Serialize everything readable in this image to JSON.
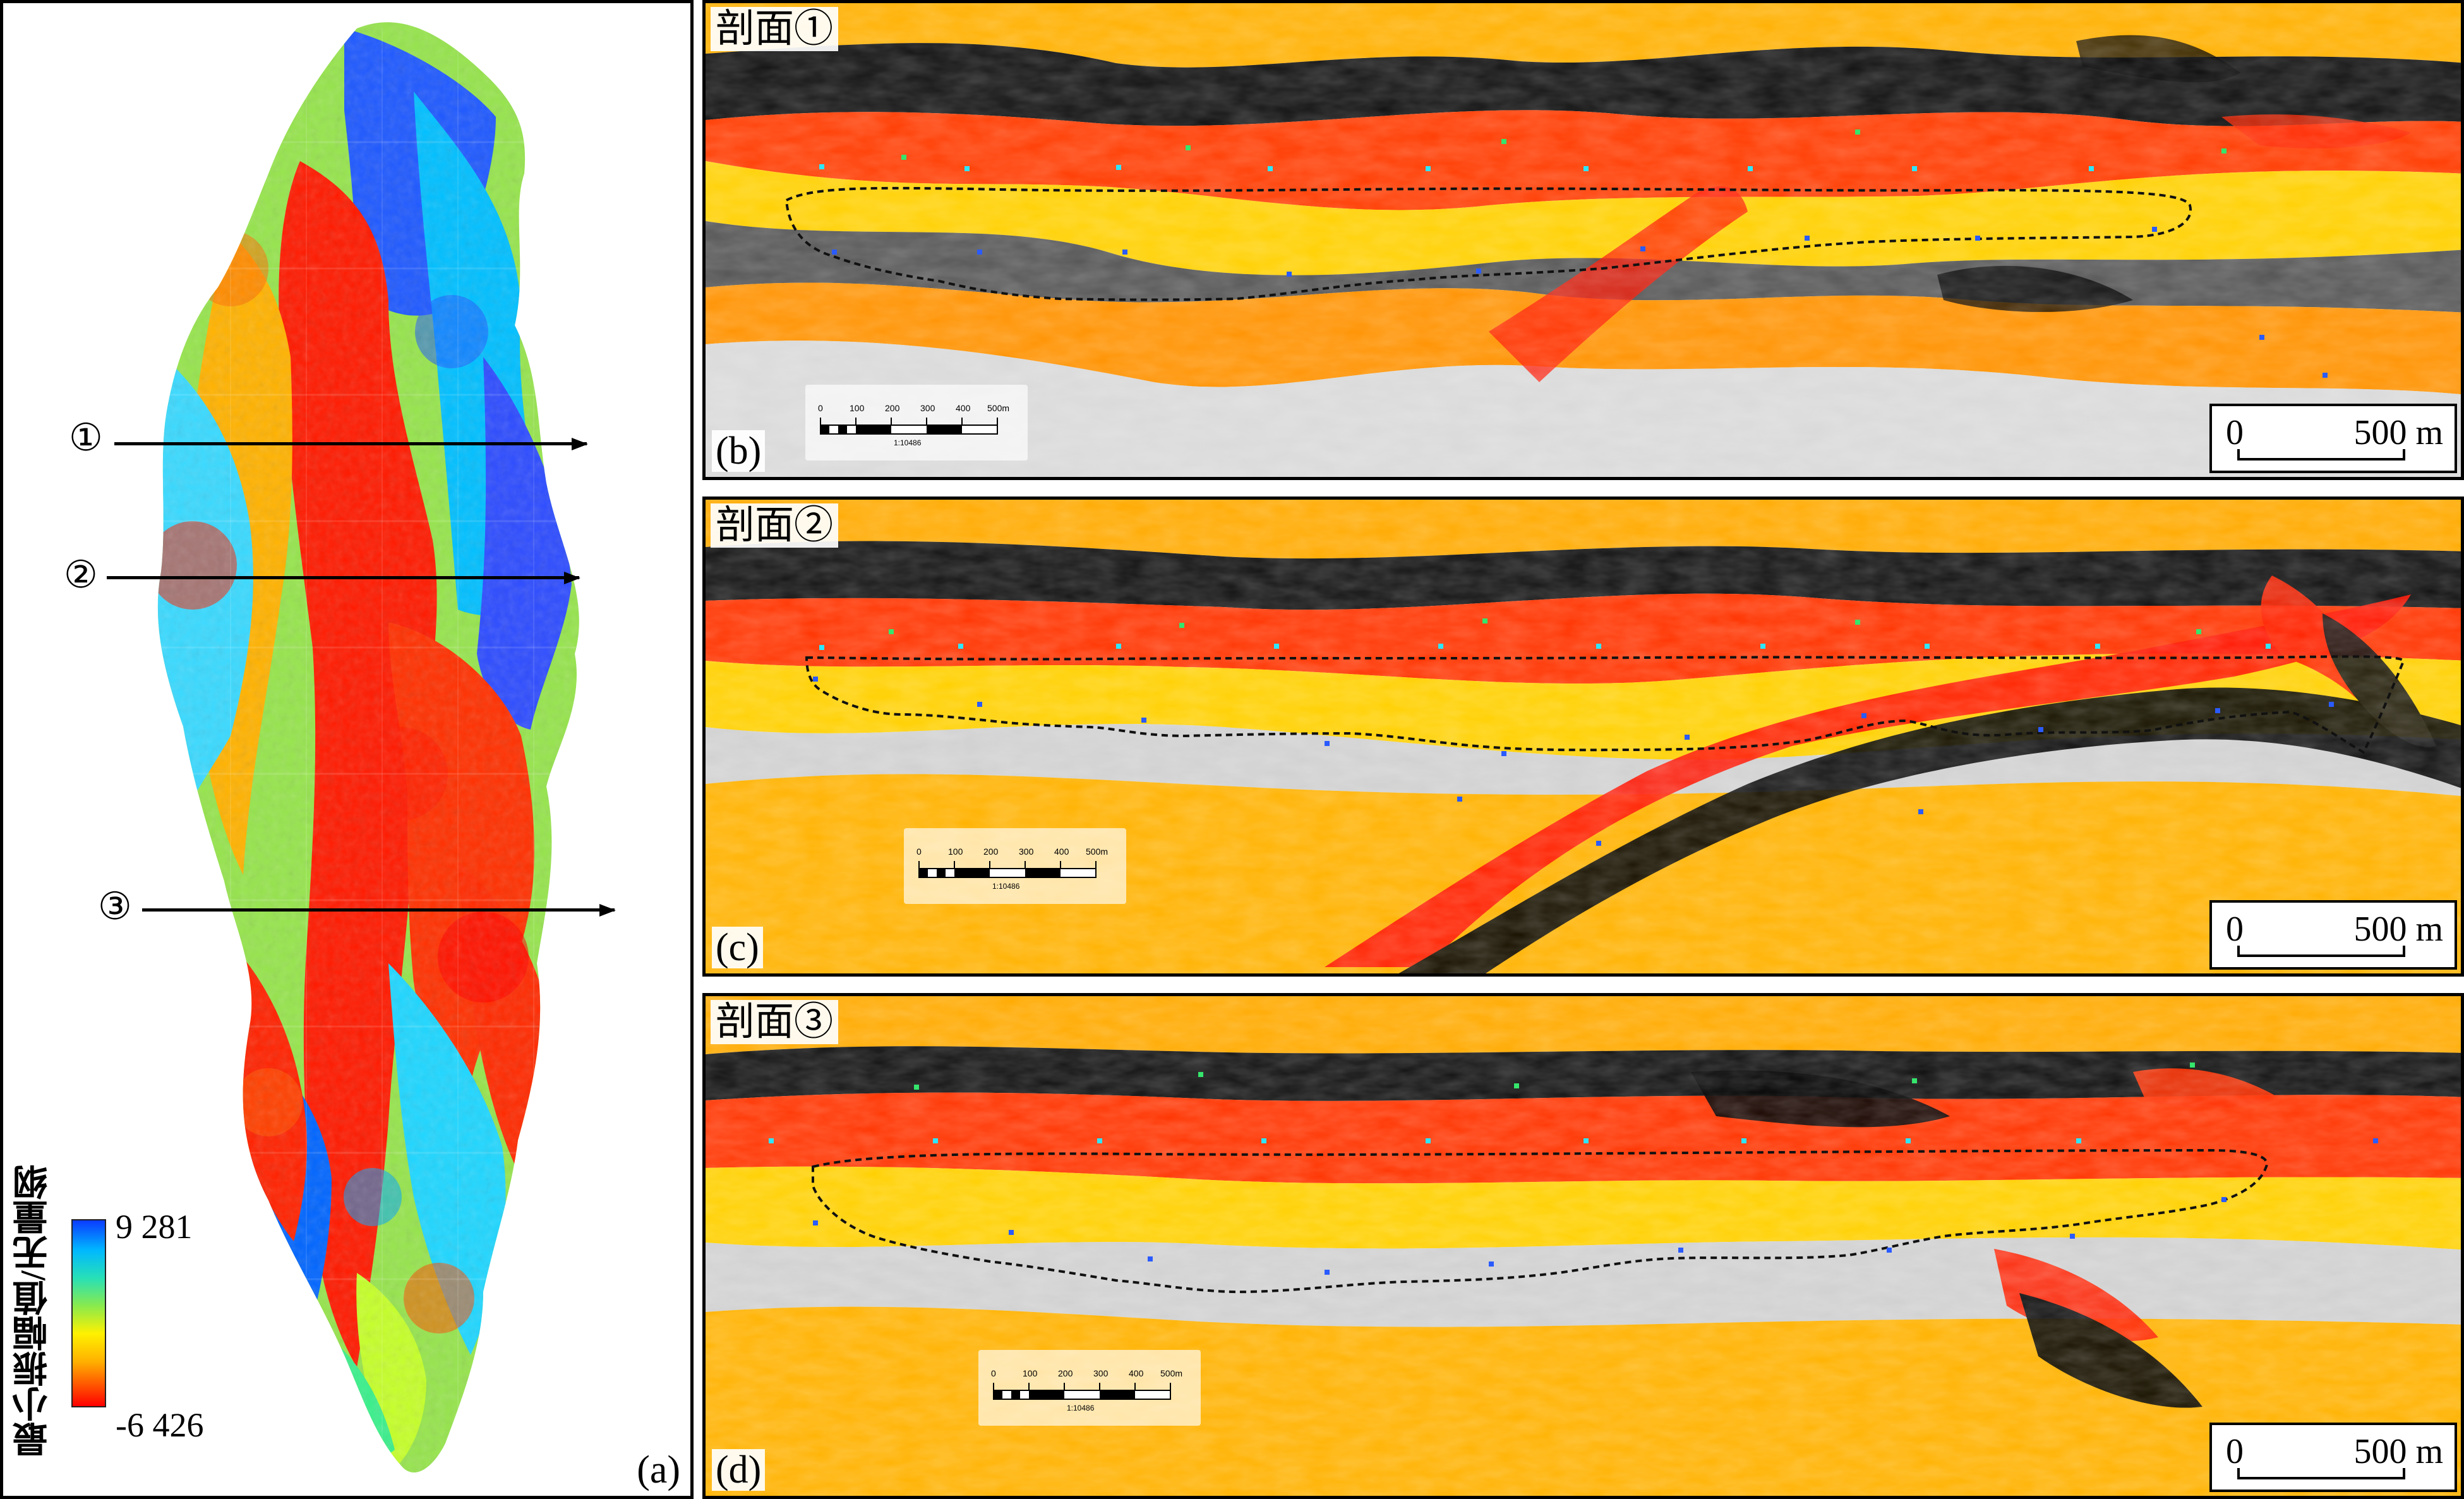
{
  "panels": {
    "a": {
      "label": "(a)",
      "legend": {
        "title": "最小振幅值/无量纲",
        "max": "9 281",
        "min": "-6 426"
      },
      "profiles": [
        {
          "label": "①"
        },
        {
          "label": "②"
        },
        {
          "label": "③"
        }
      ],
      "colors": [
        "#ff0000",
        "#ff6a00",
        "#ffd400",
        "#88ea50",
        "#2ee6c1",
        "#00a8ff",
        "#0030ff"
      ]
    },
    "b": {
      "label": "(b)",
      "title": "剖面①",
      "scale": {
        "start": "0",
        "end": "500 m"
      },
      "mini_scale": {
        "ticks": [
          "0",
          "100",
          "200",
          "300",
          "400",
          "500m"
        ],
        "ratio": "1:10486"
      }
    },
    "c": {
      "label": "(c)",
      "title": "剖面②",
      "scale": {
        "start": "0",
        "end": "500 m"
      },
      "mini_scale": {
        "ticks": [
          "0",
          "100",
          "200",
          "300",
          "400",
          "500m"
        ],
        "ratio": "1:10486"
      }
    },
    "d": {
      "label": "(d)",
      "title": "剖面③",
      "scale": {
        "start": "0",
        "end": "500 m"
      },
      "mini_scale": {
        "ticks": [
          "0",
          "100",
          "200",
          "300",
          "400",
          "500m"
        ],
        "ratio": "1:10486"
      }
    }
  }
}
